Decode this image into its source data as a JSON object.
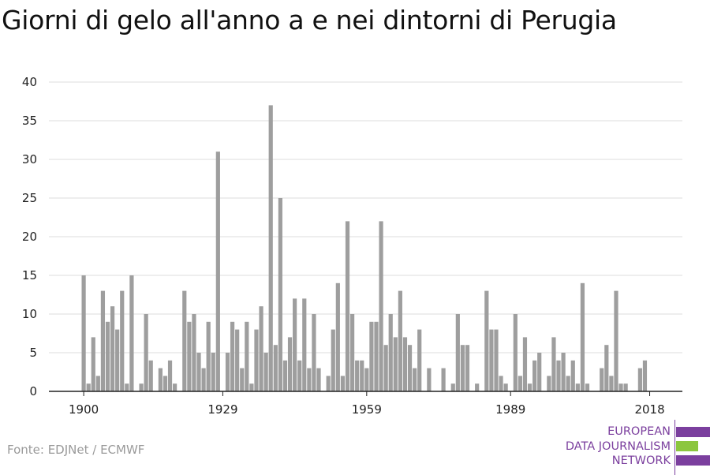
{
  "title": "Giorni di gelo all'anno a e nei dintorni di Perugia",
  "source": "Fonte: EDJNet / ECMWF",
  "logo": {
    "line1": "EUROPEAN",
    "line2": "DATA JOURNALISM",
    "line3": "NETWORK",
    "colors": {
      "purple": "#7b3f9e",
      "green": "#8cc63f"
    }
  },
  "chart_data": {
    "type": "bar",
    "title": "Giorni di gelo all'anno a e nei dintorni di Perugia",
    "xlabel": "",
    "ylabel": "",
    "ylim": [
      0,
      40
    ],
    "yticks": [
      0,
      5,
      10,
      15,
      20,
      25,
      30,
      35,
      40
    ],
    "xticks": [
      1900,
      1929,
      1959,
      1989,
      2018
    ],
    "grid": true,
    "bar_color": "#9e9e9e",
    "x": [
      1900,
      1901,
      1902,
      1903,
      1904,
      1905,
      1906,
      1907,
      1908,
      1909,
      1910,
      1911,
      1912,
      1913,
      1914,
      1915,
      1916,
      1917,
      1918,
      1919,
      1920,
      1921,
      1922,
      1923,
      1924,
      1925,
      1926,
      1927,
      1928,
      1929,
      1930,
      1931,
      1932,
      1933,
      1934,
      1935,
      1936,
      1937,
      1938,
      1939,
      1940,
      1941,
      1942,
      1943,
      1944,
      1945,
      1946,
      1947,
      1948,
      1949,
      1950,
      1951,
      1952,
      1953,
      1954,
      1955,
      1956,
      1957,
      1958,
      1959,
      1960,
      1961,
      1962,
      1963,
      1964,
      1965,
      1966,
      1967,
      1968,
      1969,
      1970,
      1971,
      1972,
      1973,
      1974,
      1975,
      1976,
      1977,
      1978,
      1979,
      1980,
      1981,
      1982,
      1983,
      1984,
      1985,
      1986,
      1987,
      1988,
      1989,
      1990,
      1991,
      1992,
      1993,
      1994,
      1995,
      1996,
      1997,
      1998,
      1999,
      2000,
      2001,
      2002,
      2003,
      2004,
      2005,
      2006,
      2007,
      2008,
      2009,
      2010,
      2011,
      2012,
      2013,
      2014,
      2015,
      2016,
      2017,
      2018
    ],
    "values": [
      15,
      1,
      7,
      2,
      13,
      9,
      11,
      8,
      13,
      1,
      15,
      0,
      1,
      10,
      4,
      0,
      3,
      2,
      4,
      1,
      0,
      13,
      9,
      10,
      5,
      3,
      9,
      5,
      31,
      0,
      5,
      9,
      8,
      3,
      9,
      1,
      8,
      11,
      5,
      37,
      6,
      25,
      4,
      7,
      12,
      4,
      12,
      3,
      10,
      3,
      0,
      2,
      8,
      14,
      2,
      22,
      10,
      4,
      4,
      3,
      9,
      9,
      22,
      6,
      10,
      7,
      13,
      7,
      6,
      3,
      8,
      0,
      3,
      0,
      0,
      3,
      0,
      1,
      10,
      6,
      6,
      0,
      1,
      0,
      13,
      8,
      8,
      2,
      1,
      0,
      10,
      2,
      7,
      1,
      4,
      5,
      0,
      2,
      7,
      4,
      5,
      2,
      4,
      1,
      14,
      1,
      0,
      0,
      3,
      6,
      2,
      13,
      1,
      1,
      0,
      0,
      3,
      4,
      0
    ]
  }
}
